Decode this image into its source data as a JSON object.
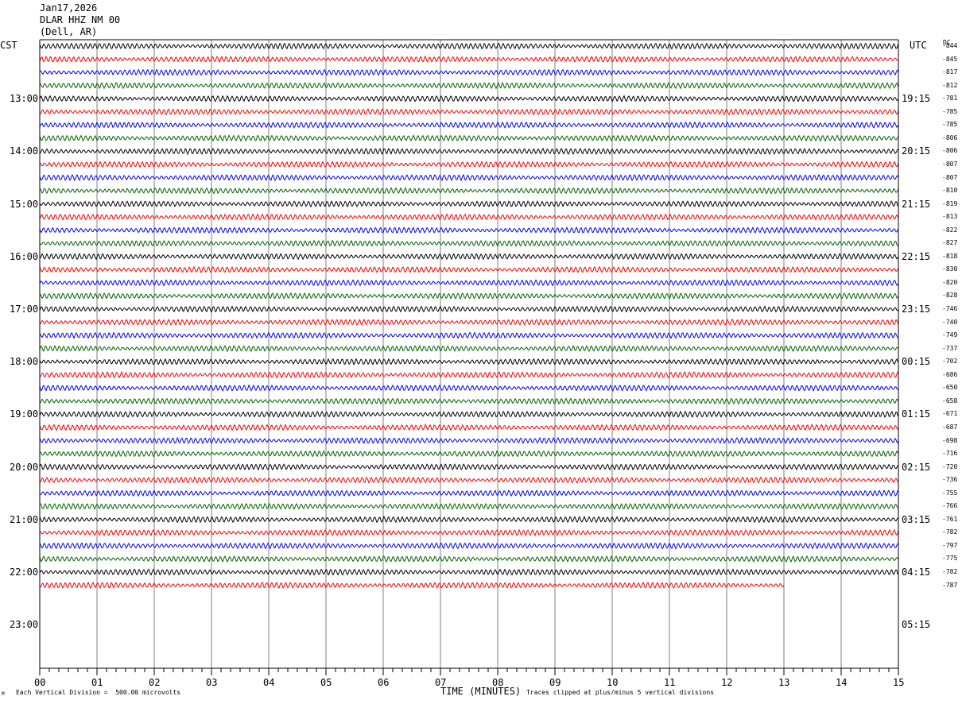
{
  "header": {
    "date": "Jan17,2026",
    "station": "DLAR HHZ NM 00",
    "location": "(Dell, AR)"
  },
  "axes": {
    "left_tz": "CST",
    "right_tz": "UTC",
    "dc_label": "DC",
    "xlabel": "TIME (MINUTES)",
    "x_ticks": [
      "00",
      "01",
      "02",
      "03",
      "04",
      "05",
      "06",
      "07",
      "08",
      "09",
      "10",
      "11",
      "12",
      "13",
      "14",
      "15"
    ]
  },
  "footer": {
    "scale_note": "Each Vertical Division =  500.00 microvolts",
    "clip_note": "Traces clipped at plus/minus 5 vertical divisions",
    "corner_mark": "M"
  },
  "colors": {
    "trace_cycle": [
      "#000000",
      "#ff0000",
      "#0000ff",
      "#006400"
    ],
    "grid": "#808080",
    "frame": "#000000"
  },
  "chart_data": {
    "type": "line",
    "title": "Jan17,2026 DLAR HHZ NM 00 (Dell, AR)",
    "xlabel": "TIME (MINUTES)",
    "xlim": [
      0,
      15
    ],
    "rows_per_hour": 4,
    "minutes_per_row": 15,
    "grid": true,
    "hour_labels_cst": [
      "13:00",
      "14:00",
      "15:00",
      "16:00",
      "17:00",
      "18:00",
      "19:00",
      "20:00",
      "21:00",
      "22:00",
      "23:00"
    ],
    "hour_labels_utc": [
      "19:15",
      "20:15",
      "21:15",
      "22:15",
      "23:15",
      "00:15",
      "01:15",
      "02:15",
      "03:15",
      "04:15",
      "05:15"
    ],
    "dc_offsets": [
      "-844",
      "-845",
      "-817",
      "-812",
      "-781",
      "-785",
      "-785",
      "-806",
      "-806",
      "-807",
      "-807",
      "-810",
      "-819",
      "-813",
      "-822",
      "-827",
      "-818",
      "-830",
      "-820",
      "-828",
      "-746",
      "-740",
      "-749",
      "-737",
      "-702",
      "-686",
      "-650",
      "-658",
      "-671",
      "-687",
      "-698",
      "-716",
      "-720",
      "-736",
      "-755",
      "-766",
      "-761",
      "-782",
      "-797",
      "-775",
      "-782",
      "-787"
    ],
    "trace_count": 42,
    "last_trace_end_minute": 13,
    "scale_microvolts_per_division": 500.0,
    "clip_divisions": 5
  }
}
